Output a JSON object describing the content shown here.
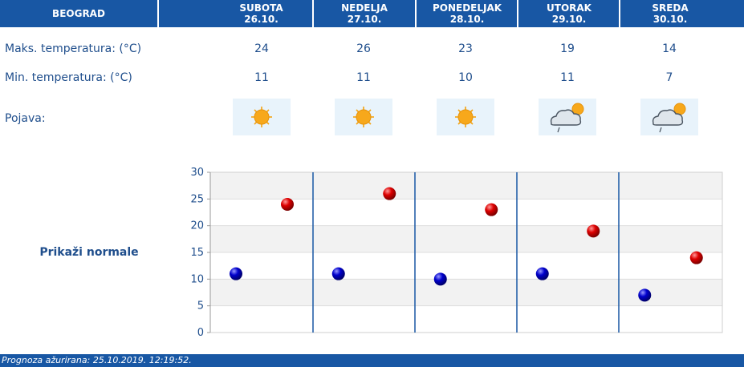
{
  "header": {
    "city": "BEOGRAD",
    "days": [
      {
        "name": "SUBOTA",
        "date": "26.10."
      },
      {
        "name": "NEDELJA",
        "date": "27.10."
      },
      {
        "name": "PONEDELJAK",
        "date": "28.10."
      },
      {
        "name": "UTORAK",
        "date": "29.10."
      },
      {
        "name": "SREDA",
        "date": "30.10."
      }
    ]
  },
  "rows": {
    "max_label": "Maks. temperatura: (°C)",
    "min_label": "Min. temperatura: (°C)",
    "phenomenon_label": "Pojava:"
  },
  "forecast": {
    "max": [
      "24",
      "26",
      "23",
      "19",
      "14"
    ],
    "min": [
      "11",
      "11",
      "10",
      "11",
      "7"
    ],
    "icons": [
      "sun-icon",
      "sun-icon",
      "sun-icon",
      "cloud-sun-rain-icon",
      "cloud-sun-rain-icon"
    ]
  },
  "normals_link": "Prikaži normale",
  "footer": {
    "updated": "Prognoza ažurirana:  25.10.2019. 12:19:52."
  },
  "colors": {
    "header_bg": "#1857a4",
    "text": "#1f4e8c",
    "max_marker": "#cc0000",
    "min_marker": "#0000bb"
  },
  "chart_data": {
    "type": "scatter",
    "categories": [
      "26.10.",
      "27.10.",
      "28.10.",
      "29.10.",
      "30.10."
    ],
    "series": [
      {
        "values": [
          11,
          11,
          10,
          11,
          7
        ]
      },
      {
        "values": [
          24,
          26,
          23,
          19,
          14
        ]
      }
    ],
    "yticks": [
      "0",
      "5",
      "10",
      "15",
      "20",
      "25",
      "30"
    ],
    "ylim": [
      0,
      30
    ],
    "grid": true
  }
}
